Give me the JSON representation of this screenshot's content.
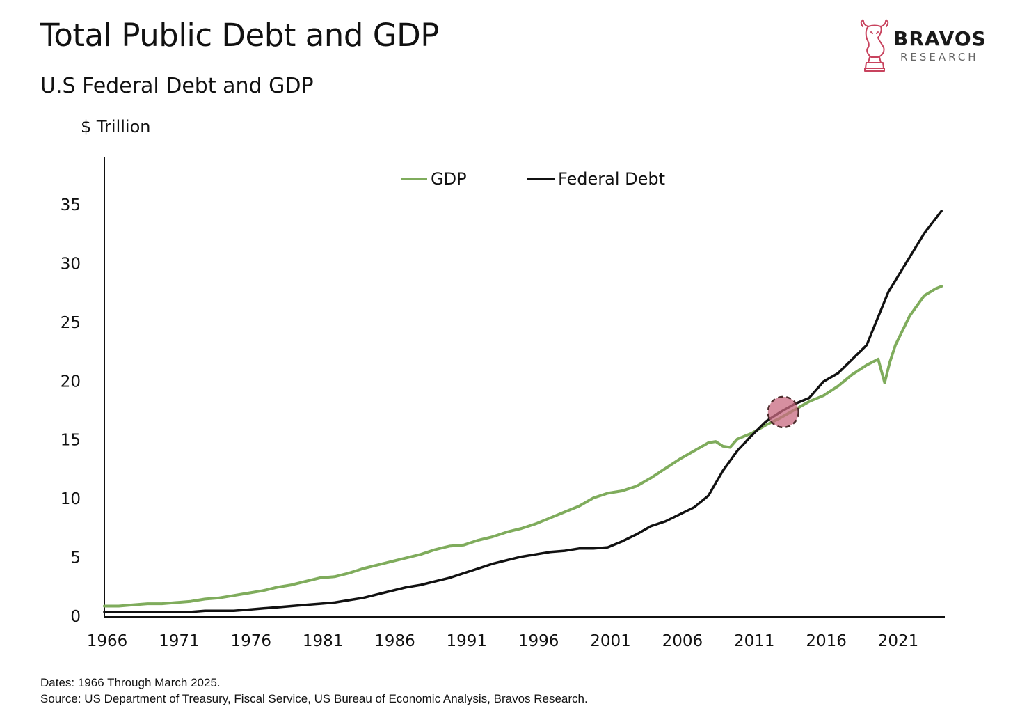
{
  "header": {
    "title": "Total Public Debt and GDP",
    "subtitle": "U.S Federal Debt and GDP"
  },
  "logo": {
    "name": "BRAVOS",
    "sub": "RESEARCH",
    "icon": "bull-chess-knight-icon",
    "color": "#c8435e"
  },
  "footer": {
    "dates": "Dates: 1966 Through March 2025.",
    "source": "Source: US Department of Treasury, Fiscal Service, US Bureau of Economic Analysis, Bravos Research."
  },
  "chart_data": {
    "type": "line",
    "ylabel": "$ Trillion",
    "xlim": [
      1966,
      2024.2
    ],
    "ylim": [
      0,
      35
    ],
    "yticks": [
      0,
      5,
      10,
      15,
      20,
      25,
      30,
      35
    ],
    "xticks": [
      1966,
      1971,
      1976,
      1981,
      1986,
      1991,
      1996,
      2001,
      2006,
      2011,
      2016,
      2021
    ],
    "grid": false,
    "legend": "top-center",
    "highlight": {
      "x": 2013.2,
      "y": 17.3,
      "color": "#c86a80"
    },
    "series": [
      {
        "name": "GDP",
        "color": "#7fac5c",
        "x": [
          1966,
          1967,
          1968,
          1969,
          1970,
          1971,
          1972,
          1973,
          1974,
          1975,
          1976,
          1977,
          1978,
          1979,
          1980,
          1981,
          1982,
          1983,
          1984,
          1985,
          1986,
          1987,
          1988,
          1989,
          1990,
          1991,
          1992,
          1993,
          1994,
          1995,
          1996,
          1997,
          1998,
          1999,
          2000,
          2001,
          2002,
          2003,
          2004,
          2005,
          2006,
          2007,
          2008,
          2008.5,
          2009,
          2009.5,
          2010,
          2011,
          2012,
          2013,
          2014,
          2015,
          2016,
          2017,
          2018,
          2019,
          2019.8,
          2020.25,
          2020.6,
          2021,
          2022,
          2023,
          2023.8,
          2024.2
        ],
        "y": [
          0.8,
          0.8,
          0.9,
          1.0,
          1.0,
          1.1,
          1.2,
          1.4,
          1.5,
          1.7,
          1.9,
          2.1,
          2.4,
          2.6,
          2.9,
          3.2,
          3.3,
          3.6,
          4.0,
          4.3,
          4.6,
          4.9,
          5.2,
          5.6,
          5.9,
          6.0,
          6.4,
          6.7,
          7.1,
          7.4,
          7.8,
          8.3,
          8.8,
          9.3,
          10.0,
          10.4,
          10.6,
          11.0,
          11.7,
          12.5,
          13.3,
          14.0,
          14.7,
          14.8,
          14.4,
          14.3,
          15.0,
          15.5,
          16.2,
          16.8,
          17.5,
          18.2,
          18.7,
          19.5,
          20.5,
          21.3,
          21.8,
          19.8,
          21.5,
          23.0,
          25.5,
          27.2,
          27.8,
          28.0
        ]
      },
      {
        "name": "Federal Debt",
        "color": "#111111",
        "x": [
          1966,
          1967,
          1968,
          1969,
          1970,
          1971,
          1972,
          1973,
          1974,
          1975,
          1976,
          1977,
          1978,
          1979,
          1980,
          1981,
          1982,
          1983,
          1984,
          1985,
          1986,
          1987,
          1988,
          1989,
          1990,
          1991,
          1992,
          1993,
          1994,
          1995,
          1996,
          1997,
          1998,
          1999,
          2000,
          2001,
          2002,
          2003,
          2004,
          2005,
          2006,
          2007,
          2008,
          2009,
          2010,
          2011,
          2012,
          2013,
          2014,
          2015,
          2016,
          2017,
          2018,
          2019,
          2020.5,
          2021,
          2022,
          2023,
          2024.2
        ],
        "y": [
          0.3,
          0.3,
          0.3,
          0.3,
          0.3,
          0.3,
          0.3,
          0.4,
          0.4,
          0.4,
          0.5,
          0.6,
          0.7,
          0.8,
          0.9,
          1.0,
          1.1,
          1.3,
          1.5,
          1.8,
          2.1,
          2.4,
          2.6,
          2.9,
          3.2,
          3.6,
          4.0,
          4.4,
          4.7,
          5.0,
          5.2,
          5.4,
          5.5,
          5.7,
          5.7,
          5.8,
          6.3,
          6.9,
          7.6,
          8.0,
          8.6,
          9.2,
          10.2,
          12.3,
          14.0,
          15.3,
          16.5,
          17.3,
          18.0,
          18.5,
          19.9,
          20.6,
          21.8,
          23.0,
          27.5,
          28.5,
          30.5,
          32.5,
          34.4
        ]
      }
    ]
  }
}
